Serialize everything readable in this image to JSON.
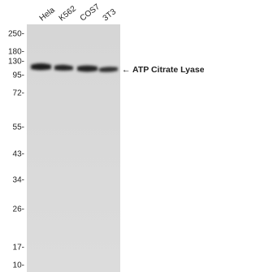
{
  "lanes": [
    "Hela",
    "K562",
    "COS7",
    "3T3"
  ],
  "markers": [
    "250-",
    "180-",
    "130-",
    "95-",
    "72-",
    "55-",
    "43-",
    "34-",
    "26-",
    "17-",
    "10-"
  ],
  "target": "← ATP Citrate Lyase"
}
